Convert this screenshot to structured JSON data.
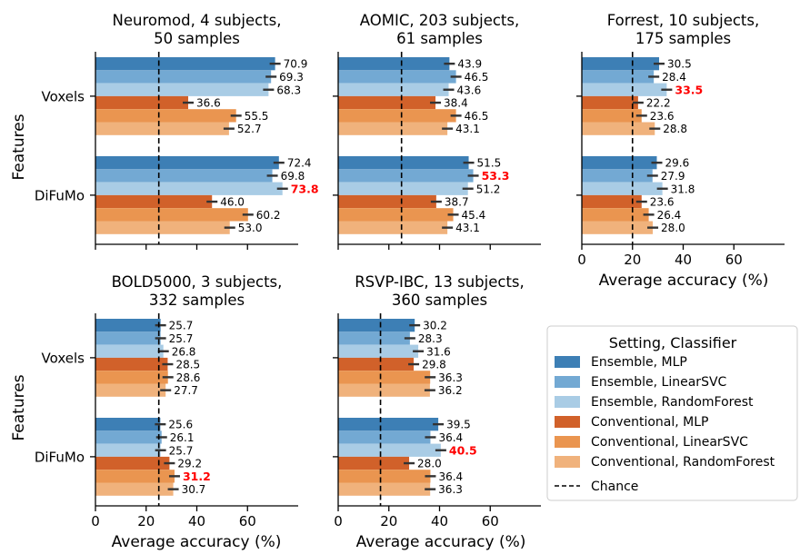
{
  "figure": {
    "y_axis_label": "Features",
    "x_axis_label": "Average accuracy (%)"
  },
  "legend": {
    "title": "Setting, Classifier",
    "entries": [
      {
        "label": "Ensemble, MLP",
        "color": "#3d7fb5"
      },
      {
        "label": "Ensemble, LinearSVC",
        "color": "#73a9d3"
      },
      {
        "label": "Ensemble, RandomForest",
        "color": "#a9cce5"
      },
      {
        "label": "Conventional, MLP",
        "color": "#d1612a"
      },
      {
        "label": "Conventional, LinearSVC",
        "color": "#ea9550"
      },
      {
        "label": "Conventional, RandomForest",
        "color": "#f0b27c"
      },
      {
        "label": "Chance",
        "style": "dashed",
        "color": "#000000"
      }
    ]
  },
  "highlight_color": "#ff0000",
  "chart_data": [
    {
      "type": "bar",
      "orientation": "horizontal",
      "title_lines": [
        "Neuromod, 4 subjects,",
        "50 samples"
      ],
      "categories": [
        "Voxels",
        "DiFuMo"
      ],
      "chance": 25,
      "show_xticks": false,
      "xticks": [
        0,
        20,
        40,
        60
      ],
      "xlim": [
        0,
        80
      ],
      "series": [
        {
          "name": "Ensemble, MLP",
          "values": [
            70.9,
            72.4
          ]
        },
        {
          "name": "Ensemble, LinearSVC",
          "values": [
            69.3,
            69.8
          ]
        },
        {
          "name": "Ensemble, RandomForest",
          "values": [
            68.3,
            73.8
          ]
        },
        {
          "name": "Conventional, MLP",
          "values": [
            36.6,
            46.0
          ]
        },
        {
          "name": "Conventional, LinearSVC",
          "values": [
            55.5,
            60.2
          ]
        },
        {
          "name": "Conventional, RandomForest",
          "values": [
            52.7,
            53.0
          ]
        }
      ],
      "highlighted": [
        "DiFuMo",
        "Ensemble, RandomForest"
      ]
    },
    {
      "type": "bar",
      "orientation": "horizontal",
      "title_lines": [
        "AOMIC, 203 subjects,",
        "61 samples"
      ],
      "categories": [
        "Voxels",
        "DiFuMo"
      ],
      "chance": 25,
      "show_xticks": false,
      "xticks": [
        0,
        20,
        40,
        60
      ],
      "xlim": [
        0,
        80
      ],
      "series": [
        {
          "name": "Ensemble, MLP",
          "values": [
            43.9,
            51.5
          ]
        },
        {
          "name": "Ensemble, LinearSVC",
          "values": [
            46.5,
            53.3
          ]
        },
        {
          "name": "Ensemble, RandomForest",
          "values": [
            43.6,
            51.2
          ]
        },
        {
          "name": "Conventional, MLP",
          "values": [
            38.4,
            38.7
          ]
        },
        {
          "name": "Conventional, LinearSVC",
          "values": [
            46.5,
            45.4
          ]
        },
        {
          "name": "Conventional, RandomForest",
          "values": [
            43.1,
            43.1
          ]
        }
      ],
      "highlighted": [
        "DiFuMo",
        "Ensemble, LinearSVC"
      ]
    },
    {
      "type": "bar",
      "orientation": "horizontal",
      "title_lines": [
        "Forrest, 10 subjects,",
        "175 samples"
      ],
      "categories": [
        "Voxels",
        "DiFuMo"
      ],
      "chance": 20,
      "show_xticks": true,
      "xticks": [
        0,
        20,
        40,
        60
      ],
      "xlim": [
        0,
        80
      ],
      "series": [
        {
          "name": "Ensemble, MLP",
          "values": [
            30.5,
            29.6
          ]
        },
        {
          "name": "Ensemble, LinearSVC",
          "values": [
            28.4,
            27.9
          ]
        },
        {
          "name": "Ensemble, RandomForest",
          "values": [
            33.5,
            31.8
          ]
        },
        {
          "name": "Conventional, MLP",
          "values": [
            22.2,
            23.6
          ]
        },
        {
          "name": "Conventional, LinearSVC",
          "values": [
            23.6,
            26.4
          ]
        },
        {
          "name": "Conventional, RandomForest",
          "values": [
            28.8,
            28.0
          ]
        }
      ],
      "highlighted": [
        "Voxels",
        "Ensemble, RandomForest"
      ]
    },
    {
      "type": "bar",
      "orientation": "horizontal",
      "title_lines": [
        "BOLD5000, 3 subjects,",
        "332 samples"
      ],
      "categories": [
        "Voxels",
        "DiFuMo"
      ],
      "chance": 25,
      "show_xticks": true,
      "xticks": [
        0,
        20,
        40,
        60
      ],
      "xlim": [
        0,
        80
      ],
      "series": [
        {
          "name": "Ensemble, MLP",
          "values": [
            25.7,
            25.6
          ]
        },
        {
          "name": "Ensemble, LinearSVC",
          "values": [
            25.7,
            26.1
          ]
        },
        {
          "name": "Ensemble, RandomForest",
          "values": [
            26.8,
            25.7
          ]
        },
        {
          "name": "Conventional, MLP",
          "values": [
            28.5,
            29.2
          ]
        },
        {
          "name": "Conventional, LinearSVC",
          "values": [
            28.6,
            31.2
          ]
        },
        {
          "name": "Conventional, RandomForest",
          "values": [
            27.7,
            30.7
          ]
        }
      ],
      "highlighted": [
        "DiFuMo",
        "Conventional, LinearSVC"
      ]
    },
    {
      "type": "bar",
      "orientation": "horizontal",
      "title_lines": [
        "RSVP-IBC, 13 subjects,",
        "360 samples"
      ],
      "categories": [
        "Voxels",
        "DiFuMo"
      ],
      "chance": 16.7,
      "show_xticks": true,
      "xticks": [
        0,
        20,
        40,
        60
      ],
      "xlim": [
        0,
        80
      ],
      "series": [
        {
          "name": "Ensemble, MLP",
          "values": [
            30.2,
            39.5
          ]
        },
        {
          "name": "Ensemble, LinearSVC",
          "values": [
            28.3,
            36.4
          ]
        },
        {
          "name": "Ensemble, RandomForest",
          "values": [
            31.6,
            40.5
          ]
        },
        {
          "name": "Conventional, MLP",
          "values": [
            29.8,
            28.0
          ]
        },
        {
          "name": "Conventional, LinearSVC",
          "values": [
            36.3,
            36.4
          ]
        },
        {
          "name": "Conventional, RandomForest",
          "values": [
            36.2,
            36.3
          ]
        }
      ],
      "highlighted": [
        "DiFuMo",
        "Ensemble, RandomForest"
      ]
    }
  ]
}
